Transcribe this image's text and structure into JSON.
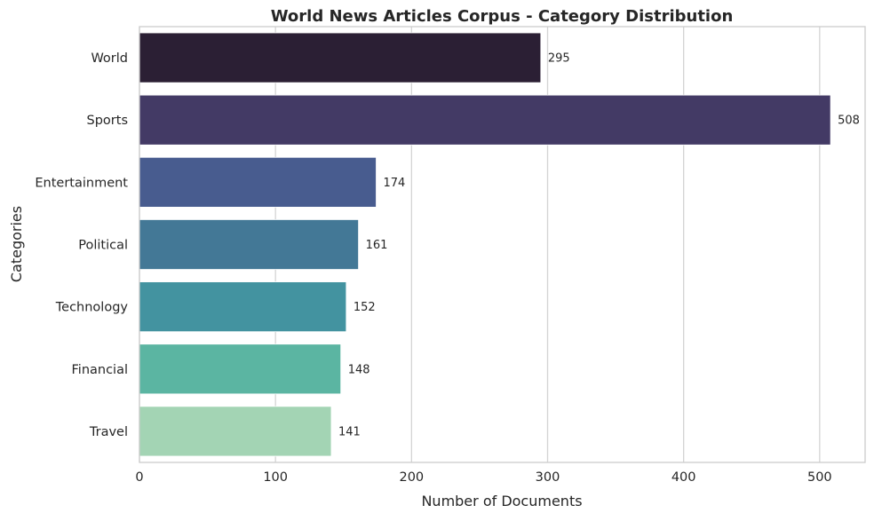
{
  "chart_data": {
    "type": "bar",
    "orientation": "horizontal",
    "title": "World News Articles Corpus - Category Distribution",
    "xlabel": "Number of Documents",
    "ylabel": "Categories",
    "categories": [
      "World",
      "Sports",
      "Entertainment",
      "Political",
      "Technology",
      "Financial",
      "Travel"
    ],
    "values": [
      295,
      508,
      174,
      161,
      152,
      148,
      141
    ],
    "data_labels": [
      "295",
      "508",
      "174",
      "161",
      "152",
      "148",
      "141"
    ],
    "colors": [
      "#2b1f34",
      "#433a65",
      "#485c8f",
      "#437896",
      "#4393a0",
      "#5bb5a2",
      "#a3d4b4"
    ],
    "xlim": [
      0,
      533.4
    ],
    "xticks": [
      0,
      100,
      200,
      300,
      400,
      500
    ],
    "xtick_labels": [
      "0",
      "100",
      "200",
      "300",
      "400",
      "500"
    ],
    "grid": "vertical",
    "legend": "none"
  }
}
